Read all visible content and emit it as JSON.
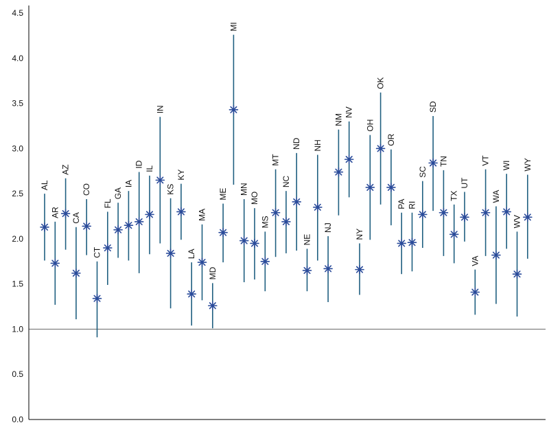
{
  "colors": {
    "marker": "#2a4b9a",
    "errorbar": "#1f5f80",
    "axis": "#000000",
    "refline": "#777777"
  },
  "chart_data": {
    "type": "scatter",
    "title": "",
    "xlabel": "",
    "ylabel": "",
    "ylim": [
      0,
      4.5
    ],
    "yticks": [
      "0.0",
      "0.5",
      "1.0",
      "1.5",
      "2.0",
      "2.5",
      "3.0",
      "3.5",
      "4.0",
      "4.5"
    ],
    "reference_line": 1.0,
    "grid": false,
    "marker": "asterisk",
    "points": [
      {
        "label": "AL",
        "value": 2.13,
        "low": 1.76,
        "high": 2.5
      },
      {
        "label": "AR",
        "value": 1.73,
        "low": 1.27,
        "high": 2.19
      },
      {
        "label": "AZ",
        "value": 2.28,
        "low": 1.88,
        "high": 2.67
      },
      {
        "label": "CA",
        "value": 1.62,
        "low": 1.11,
        "high": 2.13
      },
      {
        "label": "CO",
        "value": 2.14,
        "low": 1.82,
        "high": 2.44
      },
      {
        "label": "CT",
        "value": 1.34,
        "low": 0.91,
        "high": 1.75
      },
      {
        "label": "FL",
        "value": 1.9,
        "low": 1.49,
        "high": 2.3
      },
      {
        "label": "GA",
        "value": 2.1,
        "low": 1.79,
        "high": 2.4
      },
      {
        "label": "IA",
        "value": 2.15,
        "low": 1.76,
        "high": 2.53
      },
      {
        "label": "ID",
        "value": 2.19,
        "low": 1.62,
        "high": 2.74
      },
      {
        "label": "IL",
        "value": 2.27,
        "low": 1.83,
        "high": 2.7
      },
      {
        "label": "IN",
        "value": 2.65,
        "low": 1.95,
        "high": 3.35
      },
      {
        "label": "KS",
        "value": 1.84,
        "low": 1.23,
        "high": 2.45
      },
      {
        "label": "KY",
        "value": 2.3,
        "low": 1.99,
        "high": 2.61
      },
      {
        "label": "LA",
        "value": 1.39,
        "low": 1.04,
        "high": 1.74
      },
      {
        "label": "MA",
        "value": 1.74,
        "low": 1.32,
        "high": 2.16
      },
      {
        "label": "MD",
        "value": 1.26,
        "low": 1.01,
        "high": 1.51
      },
      {
        "label": "ME",
        "value": 2.07,
        "low": 1.74,
        "high": 2.39
      },
      {
        "label": "MI",
        "value": 3.43,
        "low": 2.6,
        "high": 4.26
      },
      {
        "label": "MN",
        "value": 1.98,
        "low": 1.52,
        "high": 2.44
      },
      {
        "label": "MO",
        "value": 1.95,
        "low": 1.55,
        "high": 2.34
      },
      {
        "label": "MS",
        "value": 1.75,
        "low": 1.42,
        "high": 2.08
      },
      {
        "label": "MT",
        "value": 2.29,
        "low": 1.8,
        "high": 2.77
      },
      {
        "label": "NC",
        "value": 2.19,
        "low": 1.84,
        "high": 2.53
      },
      {
        "label": "ND",
        "value": 2.41,
        "low": 1.87,
        "high": 2.95
      },
      {
        "label": "NE",
        "value": 1.65,
        "low": 1.42,
        "high": 1.89
      },
      {
        "label": "NH",
        "value": 2.35,
        "low": 1.76,
        "high": 2.93
      },
      {
        "label": "NJ",
        "value": 1.67,
        "low": 1.3,
        "high": 2.03
      },
      {
        "label": "NM",
        "value": 2.74,
        "low": 2.26,
        "high": 3.21
      },
      {
        "label": "NV",
        "value": 2.88,
        "low": 2.46,
        "high": 3.3
      },
      {
        "label": "NY",
        "value": 1.66,
        "low": 1.38,
        "high": 1.95
      },
      {
        "label": "OH",
        "value": 2.57,
        "low": 1.99,
        "high": 3.15
      },
      {
        "label": "OK",
        "value": 3.0,
        "low": 2.38,
        "high": 3.62
      },
      {
        "label": "OR",
        "value": 2.57,
        "low": 2.15,
        "high": 2.99
      },
      {
        "label": "PA",
        "value": 1.95,
        "low": 1.61,
        "high": 2.29
      },
      {
        "label": "RI",
        "value": 1.96,
        "low": 1.64,
        "high": 2.29
      },
      {
        "label": "SC",
        "value": 2.27,
        "low": 1.9,
        "high": 2.64
      },
      {
        "label": "SD",
        "value": 2.84,
        "low": 2.31,
        "high": 3.36
      },
      {
        "label": "TN",
        "value": 2.29,
        "low": 1.81,
        "high": 2.76
      },
      {
        "label": "TX",
        "value": 2.05,
        "low": 1.73,
        "high": 2.38
      },
      {
        "label": "UT",
        "value": 2.24,
        "low": 1.97,
        "high": 2.52
      },
      {
        "label": "VA",
        "value": 1.41,
        "low": 1.16,
        "high": 1.66
      },
      {
        "label": "VT",
        "value": 2.29,
        "low": 1.81,
        "high": 2.77
      },
      {
        "label": "WA",
        "value": 1.82,
        "low": 1.28,
        "high": 2.36
      },
      {
        "label": "WI",
        "value": 2.3,
        "low": 1.89,
        "high": 2.72
      },
      {
        "label": "WV",
        "value": 1.61,
        "low": 1.14,
        "high": 2.08
      },
      {
        "label": "WY",
        "value": 2.24,
        "low": 1.78,
        "high": 2.71
      }
    ]
  }
}
